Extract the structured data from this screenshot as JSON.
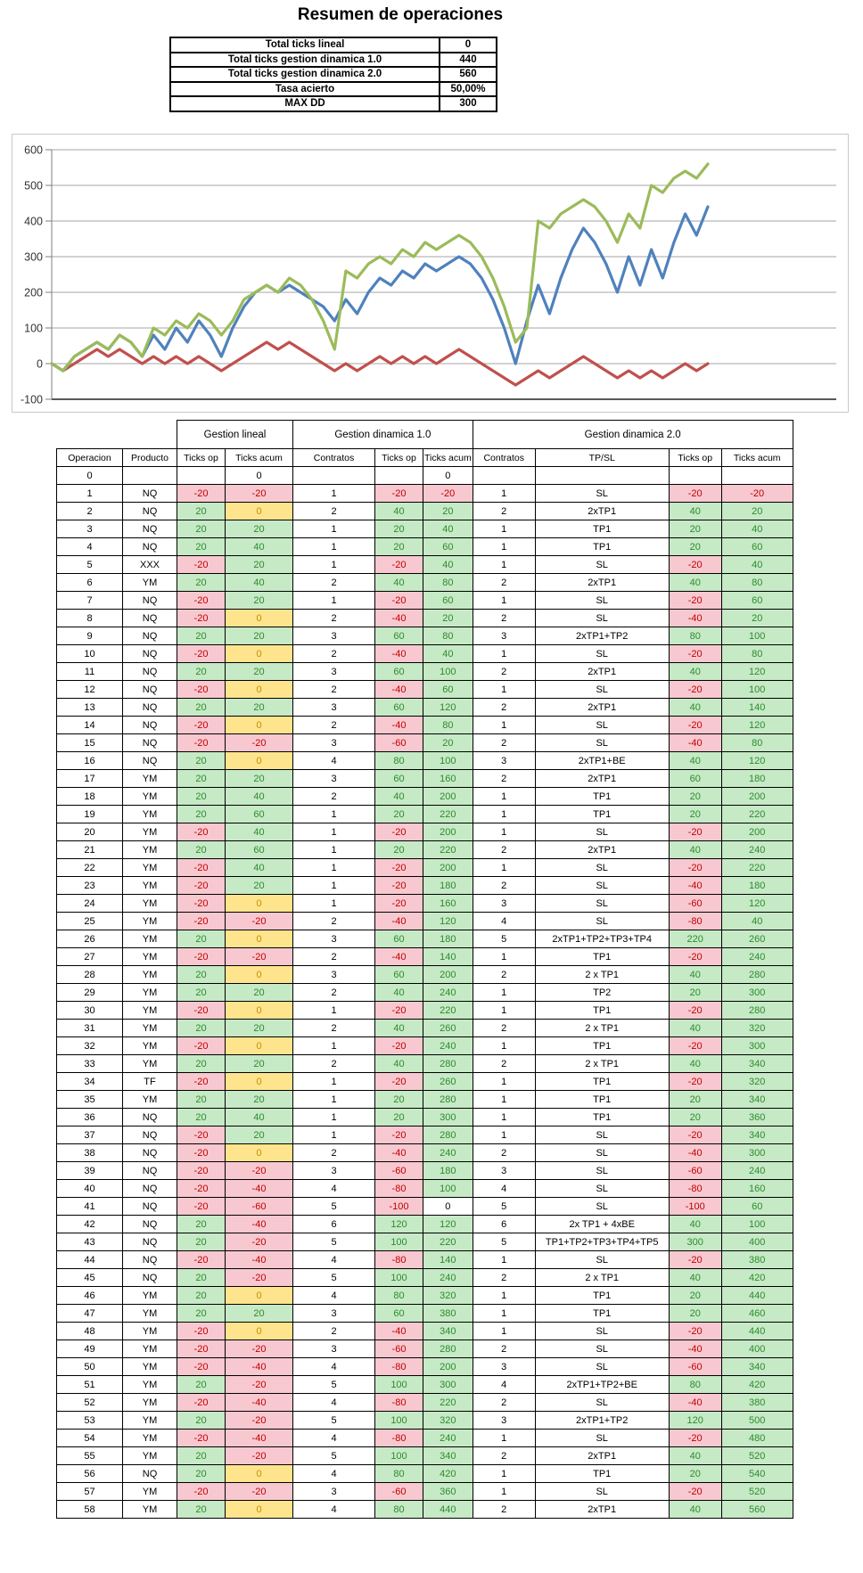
{
  "title": "Resumen de operaciones",
  "summary": {
    "rows": [
      {
        "label": "Total ticks lineal",
        "value": "0"
      },
      {
        "label": "Total ticks gestion dinamica 1.0",
        "value": "440"
      },
      {
        "label": "Total ticks gestion dinamica 2.0",
        "value": "560"
      },
      {
        "label": "Tasa acierto",
        "value": "50,00%"
      },
      {
        "label": "MAX DD",
        "value": "300"
      }
    ]
  },
  "chart_data": {
    "type": "line",
    "title": "",
    "xlabel": "",
    "ylabel": "",
    "x_description": "operation number 0-58",
    "ylim": [
      -100,
      600
    ],
    "yticks": [
      600,
      500,
      400,
      300,
      200,
      100,
      0,
      -100
    ],
    "grid": true,
    "legend": "none",
    "series": [
      {
        "name": "Ticks acum lineal",
        "color": "#c0504d",
        "values": [
          0,
          -20,
          0,
          20,
          40,
          20,
          40,
          20,
          0,
          20,
          0,
          20,
          0,
          20,
          0,
          -20,
          0,
          20,
          40,
          60,
          40,
          60,
          40,
          20,
          0,
          -20,
          0,
          -20,
          0,
          20,
          0,
          20,
          0,
          20,
          0,
          20,
          40,
          20,
          0,
          -20,
          -40,
          -60,
          -40,
          -20,
          -40,
          -20,
          0,
          20,
          0,
          -20,
          -40,
          -20,
          -40,
          -20,
          -40,
          -20,
          0,
          -20,
          0
        ]
      },
      {
        "name": "Ticks acum gestion dinamica 1.0",
        "color": "#4f81bd",
        "values": [
          0,
          -20,
          20,
          40,
          60,
          40,
          80,
          60,
          20,
          80,
          40,
          100,
          60,
          120,
          80,
          20,
          100,
          160,
          200,
          220,
          200,
          220,
          200,
          180,
          160,
          120,
          180,
          140,
          200,
          240,
          220,
          260,
          240,
          280,
          260,
          280,
          300,
          280,
          240,
          180,
          100,
          0,
          120,
          220,
          140,
          240,
          320,
          380,
          340,
          280,
          200,
          300,
          220,
          320,
          240,
          340,
          420,
          360,
          440
        ]
      },
      {
        "name": "Ticks acum gestion dinamica 2.0",
        "color": "#9bbb59",
        "values": [
          0,
          -20,
          20,
          40,
          60,
          40,
          80,
          60,
          20,
          100,
          80,
          120,
          100,
          140,
          120,
          80,
          120,
          180,
          200,
          220,
          200,
          240,
          220,
          180,
          120,
          40,
          260,
          240,
          280,
          300,
          280,
          320,
          300,
          340,
          320,
          340,
          360,
          340,
          300,
          240,
          160,
          60,
          100,
          400,
          380,
          420,
          440,
          460,
          440,
          400,
          340,
          420,
          380,
          500,
          480,
          520,
          540,
          520,
          560
        ]
      }
    ]
  },
  "table": {
    "group_headers": [
      {
        "label": "Gestion lineal",
        "span": 2
      },
      {
        "label": "Gestion dinamica 1.0",
        "span": 3
      },
      {
        "label": "Gestion dinamica 2.0",
        "span": 4
      }
    ],
    "columns": [
      {
        "key": "operacion",
        "label": "Operacion",
        "fmt": ""
      },
      {
        "key": "producto",
        "label": "Producto",
        "fmt": ""
      },
      {
        "key": "ticks-op-lineal",
        "label": "Ticks op",
        "fmt": "pn"
      },
      {
        "key": "ticks-acum-lineal",
        "label": "Ticks acum",
        "fmt": "pnz"
      },
      {
        "key": "contratos-10",
        "label": "Contratos",
        "fmt": ""
      },
      {
        "key": "ticks-op-10",
        "label": "Ticks op",
        "fmt": "pn"
      },
      {
        "key": "ticks-acum-10",
        "label": "Ticks acum",
        "fmt": "pn"
      },
      {
        "key": "contratos-20",
        "label": "Contratos",
        "fmt": ""
      },
      {
        "key": "tp-sl",
        "label": "TP/SL",
        "fmt": ""
      },
      {
        "key": "ticks-op-20",
        "label": "Ticks op",
        "fmt": "pn"
      },
      {
        "key": "ticks-acum-20",
        "label": "Ticks acum",
        "fmt": "pn"
      }
    ],
    "rows": [
      [
        0,
        "",
        "",
        0,
        "",
        "",
        0,
        "",
        "",
        "",
        ""
      ],
      [
        1,
        "NQ",
        -20,
        -20,
        1,
        -20,
        -20,
        1,
        "SL",
        -20,
        -20
      ],
      [
        2,
        "NQ",
        20,
        0,
        2,
        40,
        20,
        2,
        "2xTP1",
        40,
        20
      ],
      [
        3,
        "NQ",
        20,
        20,
        1,
        20,
        40,
        1,
        "TP1",
        20,
        40
      ],
      [
        4,
        "NQ",
        20,
        40,
        1,
        20,
        60,
        1,
        "TP1",
        20,
        60
      ],
      [
        5,
        "XXX",
        -20,
        20,
        1,
        -20,
        40,
        1,
        "SL",
        -20,
        40
      ],
      [
        6,
        "YM",
        20,
        40,
        2,
        40,
        80,
        2,
        "2xTP1",
        40,
        80
      ],
      [
        7,
        "NQ",
        -20,
        20,
        1,
        -20,
        60,
        1,
        "SL",
        -20,
        60
      ],
      [
        8,
        "NQ",
        -20,
        0,
        2,
        -40,
        20,
        2,
        "SL",
        -40,
        20
      ],
      [
        9,
        "NQ",
        20,
        20,
        3,
        60,
        80,
        3,
        "2xTP1+TP2",
        80,
        100
      ],
      [
        10,
        "NQ",
        -20,
        0,
        2,
        -40,
        40,
        1,
        "SL",
        -20,
        80
      ],
      [
        11,
        "NQ",
        20,
        20,
        3,
        60,
        100,
        2,
        "2xTP1",
        40,
        120
      ],
      [
        12,
        "NQ",
        -20,
        0,
        2,
        -40,
        60,
        1,
        "SL",
        -20,
        100
      ],
      [
        13,
        "NQ",
        20,
        20,
        3,
        60,
        120,
        2,
        "2xTP1",
        40,
        140
      ],
      [
        14,
        "NQ",
        -20,
        0,
        2,
        -40,
        80,
        1,
        "SL",
        -20,
        120
      ],
      [
        15,
        "NQ",
        -20,
        -20,
        3,
        -60,
        20,
        2,
        "SL",
        -40,
        80
      ],
      [
        16,
        "NQ",
        20,
        0,
        4,
        80,
        100,
        3,
        "2xTP1+BE",
        40,
        120
      ],
      [
        17,
        "YM",
        20,
        20,
        3,
        60,
        160,
        2,
        "2xTP1",
        60,
        180
      ],
      [
        18,
        "YM",
        20,
        40,
        2,
        40,
        200,
        1,
        "TP1",
        20,
        200
      ],
      [
        19,
        "YM",
        20,
        60,
        1,
        20,
        220,
        1,
        "TP1",
        20,
        220
      ],
      [
        20,
        "YM",
        -20,
        40,
        1,
        -20,
        200,
        1,
        "SL",
        -20,
        200
      ],
      [
        21,
        "YM",
        20,
        60,
        1,
        20,
        220,
        2,
        "2xTP1",
        40,
        240
      ],
      [
        22,
        "YM",
        -20,
        40,
        1,
        -20,
        200,
        1,
        "SL",
        -20,
        220
      ],
      [
        23,
        "YM",
        -20,
        20,
        1,
        -20,
        180,
        2,
        "SL",
        -40,
        180
      ],
      [
        24,
        "YM",
        -20,
        0,
        1,
        -20,
        160,
        3,
        "SL",
        -60,
        120
      ],
      [
        25,
        "YM",
        -20,
        -20,
        2,
        -40,
        120,
        4,
        "SL",
        -80,
        40
      ],
      [
        26,
        "YM",
        20,
        0,
        3,
        60,
        180,
        5,
        "2xTP1+TP2+TP3+TP4",
        220,
        260
      ],
      [
        27,
        "YM",
        -20,
        -20,
        2,
        -40,
        140,
        1,
        "TP1",
        -20,
        240
      ],
      [
        28,
        "YM",
        20,
        0,
        3,
        60,
        200,
        2,
        "2 x TP1",
        40,
        280
      ],
      [
        29,
        "YM",
        20,
        20,
        2,
        40,
        240,
        1,
        "TP2",
        20,
        300
      ],
      [
        30,
        "YM",
        -20,
        0,
        1,
        -20,
        220,
        1,
        "TP1",
        -20,
        280
      ],
      [
        31,
        "YM",
        20,
        20,
        2,
        40,
        260,
        2,
        "2 x TP1",
        40,
        320
      ],
      [
        32,
        "YM",
        -20,
        0,
        1,
        -20,
        240,
        1,
        "TP1",
        -20,
        300
      ],
      [
        33,
        "YM",
        20,
        20,
        2,
        40,
        280,
        2,
        "2 x TP1",
        40,
        340
      ],
      [
        34,
        "TF",
        -20,
        0,
        1,
        -20,
        260,
        1,
        "TP1",
        -20,
        320
      ],
      [
        35,
        "YM",
        20,
        20,
        1,
        20,
        280,
        1,
        "TP1",
        20,
        340
      ],
      [
        36,
        "NQ",
        20,
        40,
        1,
        20,
        300,
        1,
        "TP1",
        20,
        360
      ],
      [
        37,
        "NQ",
        -20,
        20,
        1,
        -20,
        280,
        1,
        "SL",
        -20,
        340
      ],
      [
        38,
        "NQ",
        -20,
        0,
        2,
        -40,
        240,
        2,
        "SL",
        -40,
        300
      ],
      [
        39,
        "NQ",
        -20,
        -20,
        3,
        -60,
        180,
        3,
        "SL",
        -60,
        240
      ],
      [
        40,
        "NQ",
        -20,
        -40,
        4,
        -80,
        100,
        4,
        "SL",
        -80,
        160
      ],
      [
        41,
        "NQ",
        -20,
        -60,
        5,
        -100,
        0,
        5,
        "SL",
        -100,
        60
      ],
      [
        42,
        "NQ",
        20,
        -40,
        6,
        120,
        120,
        6,
        "2x TP1 + 4xBE",
        40,
        100
      ],
      [
        43,
        "NQ",
        20,
        -20,
        5,
        100,
        220,
        5,
        "TP1+TP2+TP3+TP4+TP5",
        300,
        400
      ],
      [
        44,
        "NQ",
        -20,
        -40,
        4,
        -80,
        140,
        1,
        "SL",
        -20,
        380
      ],
      [
        45,
        "NQ",
        20,
        -20,
        5,
        100,
        240,
        2,
        "2 x TP1",
        40,
        420
      ],
      [
        46,
        "YM",
        20,
        0,
        4,
        80,
        320,
        1,
        "TP1",
        20,
        440
      ],
      [
        47,
        "YM",
        20,
        20,
        3,
        60,
        380,
        1,
        "TP1",
        20,
        460
      ],
      [
        48,
        "YM",
        -20,
        0,
        2,
        -40,
        340,
        1,
        "SL",
        -20,
        440
      ],
      [
        49,
        "YM",
        -20,
        -20,
        3,
        -60,
        280,
        2,
        "SL",
        -40,
        400
      ],
      [
        50,
        "YM",
        -20,
        -40,
        4,
        -80,
        200,
        3,
        "SL",
        -60,
        340
      ],
      [
        51,
        "YM",
        20,
        -20,
        5,
        100,
        300,
        4,
        "2xTP1+TP2+BE",
        80,
        420
      ],
      [
        52,
        "YM",
        -20,
        -40,
        4,
        -80,
        220,
        2,
        "SL",
        -40,
        380
      ],
      [
        53,
        "YM",
        20,
        -20,
        5,
        100,
        320,
        3,
        "2xTP1+TP2",
        120,
        500
      ],
      [
        54,
        "YM",
        -20,
        -40,
        4,
        -80,
        240,
        1,
        "SL",
        -20,
        480
      ],
      [
        55,
        "YM",
        20,
        -20,
        5,
        100,
        340,
        2,
        "2xTP1",
        40,
        520
      ],
      [
        56,
        "NQ",
        20,
        0,
        4,
        80,
        420,
        1,
        "TP1",
        20,
        540
      ],
      [
        57,
        "YM",
        -20,
        -20,
        3,
        -60,
        360,
        1,
        "SL",
        -20,
        520
      ],
      [
        58,
        "YM",
        20,
        0,
        4,
        80,
        440,
        2,
        "2xTP1",
        40,
        560
      ]
    ]
  },
  "colors": {
    "positive_fill": "#c6e9c6",
    "positive_text": "#2e8b2e",
    "negative_fill": "#f8c8d0",
    "negative_text": "#c00000",
    "zero_fill": "#ffe48e",
    "zero_text": "#bf9000",
    "gridline": "#a6a6a6",
    "axis_line": "#7f7f7f",
    "chart_frame": "#c9c9c9"
  }
}
